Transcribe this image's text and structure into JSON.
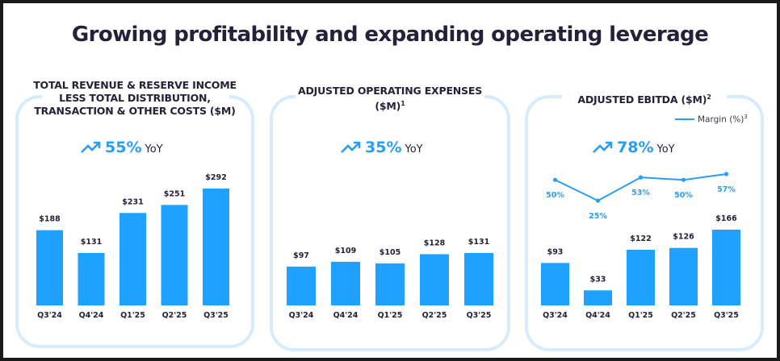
{
  "title": "Growing profitability and expanding operating leverage",
  "colors": {
    "bar": "#1fa2ff",
    "line": "#2a9df4",
    "text": "#24213a",
    "panel_border": "#d6ecfd"
  },
  "panels": [
    {
      "title_lines": [
        "TOTAL REVENUE & RESERVE INCOME",
        "LESS TOTAL DISTRIBUTION,",
        "TRANSACTION & OTHER COSTS ($M)"
      ],
      "yoy": {
        "icon": "trending-up-icon",
        "value": "55%",
        "label": "YoY"
      }
    },
    {
      "title_lines": [
        "ADJUSTED OPERATING EXPENSES",
        "($M)"
      ],
      "title_sup": "1",
      "yoy": {
        "icon": "trending-up-icon",
        "value": "35%",
        "label": "YoY"
      }
    },
    {
      "title_lines": [
        "ADJUSTED EBITDA ($M)"
      ],
      "title_sup": "2",
      "legend": {
        "label": "Margin (%)",
        "sup": "3"
      },
      "yoy": {
        "icon": "trending-up-icon",
        "value": "78%",
        "label": "YoY"
      }
    }
  ],
  "chart_data": [
    {
      "type": "bar",
      "title": "Total Revenue & Reserve Income less Total Distribution, Transaction & Other Costs ($M)",
      "categories": [
        "Q3'24",
        "Q4'24",
        "Q1'25",
        "Q2'25",
        "Q3'25"
      ],
      "values": [
        188,
        131,
        231,
        251,
        292
      ],
      "data_labels": [
        "$188",
        "$131",
        "$231",
        "$251",
        "$292"
      ],
      "xlabel": "",
      "ylabel": "$M",
      "ylim": [
        0,
        292
      ],
      "grid": false
    },
    {
      "type": "bar",
      "title": "Adjusted Operating Expenses ($M)",
      "categories": [
        "Q3'24",
        "Q4'24",
        "Q1'25",
        "Q2'25",
        "Q3'25"
      ],
      "values": [
        97,
        109,
        105,
        128,
        131
      ],
      "data_labels": [
        "$97",
        "$109",
        "$105",
        "$128",
        "$131"
      ],
      "xlabel": "",
      "ylabel": "$M",
      "ylim": [
        0,
        292
      ],
      "grid": false
    },
    {
      "type": "bar",
      "title": "Adjusted EBITDA ($M)",
      "categories": [
        "Q3'24",
        "Q4'24",
        "Q1'25",
        "Q2'25",
        "Q3'25"
      ],
      "values": [
        93,
        33,
        122,
        126,
        166
      ],
      "data_labels": [
        "$93",
        "$33",
        "$122",
        "$126",
        "$166"
      ],
      "series": [
        {
          "name": "Adjusted EBITDA ($M)",
          "type": "bar",
          "values": [
            93,
            33,
            122,
            126,
            166
          ]
        },
        {
          "name": "Margin (%)",
          "type": "line",
          "values": [
            50,
            25,
            53,
            50,
            57
          ],
          "data_labels": [
            "50%",
            "25%",
            "53%",
            "50%",
            "57%"
          ]
        }
      ],
      "xlabel": "",
      "ylabel": "$M",
      "ylim": [
        0,
        166
      ],
      "legend": "top-right",
      "grid": false
    }
  ]
}
